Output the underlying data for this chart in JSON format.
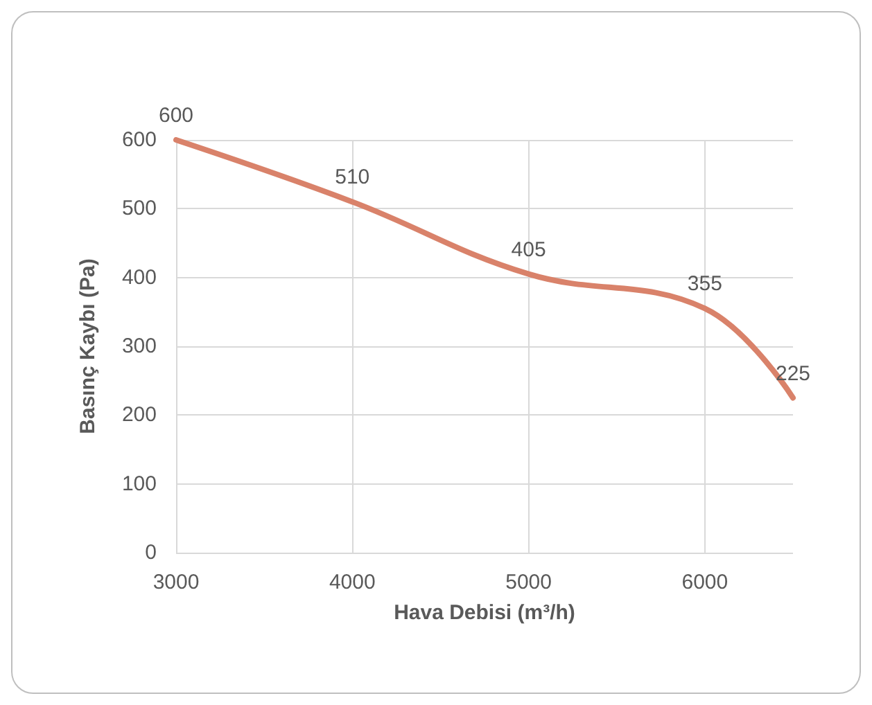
{
  "chart_data": {
    "type": "line",
    "xlabel": "Hava Debisi (m³/h)",
    "ylabel": "Basınç Kaybı (Pa)",
    "x": [
      3000,
      4000,
      5000,
      6000,
      6500
    ],
    "series": [
      {
        "color": "#d9826a",
        "values": [
          600,
          510,
          405,
          355,
          225
        ]
      }
    ],
    "xlim": [
      3000,
      6500
    ],
    "xticks": [
      3000,
      4000,
      5000,
      6000
    ],
    "ylim": [
      0,
      600
    ],
    "yticks": [
      0,
      100,
      200,
      300,
      400,
      500,
      600
    ],
    "grid": true,
    "data_labels": true,
    "marker": "none",
    "line_style": "solid"
  }
}
